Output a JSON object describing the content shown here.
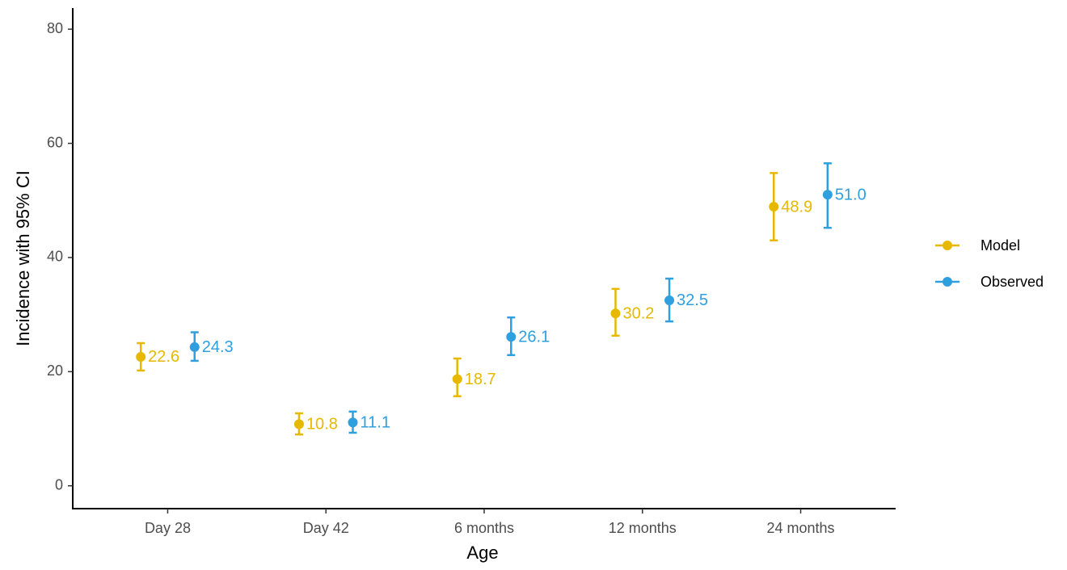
{
  "chart_data": {
    "type": "errorbar",
    "x_label": "Age",
    "y_label": "Incidence with 95% CI",
    "categories": [
      "Day 28",
      "Day 42",
      "6 months",
      "12 months",
      "24 months"
    ],
    "series": [
      {
        "name": "Model",
        "color": "#E7B800",
        "values": [
          22.6,
          10.8,
          18.7,
          30.2,
          48.9
        ],
        "value_labels": [
          "22.6",
          "10.8",
          "18.7",
          "30.2",
          "48.9"
        ],
        "lower": [
          20.2,
          9.0,
          15.7,
          26.3,
          43.0
        ],
        "upper": [
          25.0,
          12.7,
          22.3,
          34.5,
          54.8
        ]
      },
      {
        "name": "Observed",
        "color": "#2E9FDF",
        "values": [
          24.3,
          11.1,
          26.1,
          32.5,
          51.0
        ],
        "value_labels": [
          "24.3",
          "11.1",
          "26.1",
          "32.5",
          "51.0"
        ],
        "lower": [
          21.9,
          9.3,
          22.9,
          28.8,
          45.2
        ],
        "upper": [
          26.9,
          13.0,
          29.5,
          36.3,
          56.5
        ]
      }
    ],
    "ylim": [
      -4,
      83.7
    ],
    "yticks": [
      0,
      20,
      40,
      60,
      80
    ],
    "grid": false,
    "legend": "right"
  }
}
